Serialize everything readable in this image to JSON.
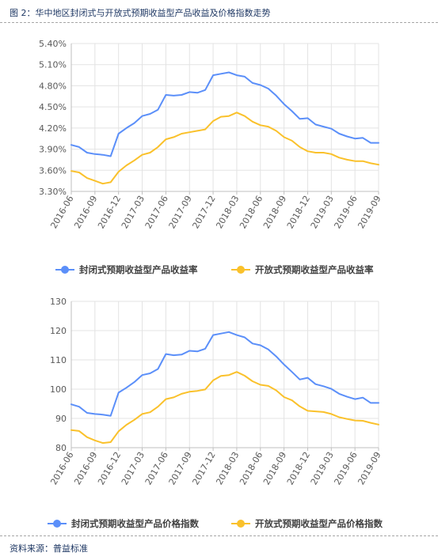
{
  "figure_title": "图 2：华中地区封闭式与开放式预期收益型产品收益及价格指数走势",
  "source": "资料来源：普益标准",
  "colors": {
    "series_a": "#5b8ff9",
    "series_b": "#fac12b"
  },
  "chart_data": [
    {
      "type": "line",
      "x": [
        "2016-06",
        "2016-07",
        "2016-08",
        "2016-09",
        "2016-10",
        "2016-11",
        "2016-12",
        "2017-01",
        "2017-02",
        "2017-03",
        "2017-04",
        "2017-05",
        "2017-06",
        "2017-07",
        "2017-08",
        "2017-09",
        "2017-10",
        "2017-11",
        "2017-12",
        "2018-01",
        "2018-02",
        "2018-03",
        "2018-04",
        "2018-05",
        "2018-06",
        "2018-07",
        "2018-08",
        "2018-09",
        "2018-10",
        "2018-11",
        "2018-12",
        "2019-01",
        "2019-02",
        "2019-03",
        "2019-04",
        "2019-05",
        "2019-06",
        "2019-07",
        "2019-08",
        "2019-09"
      ],
      "x_tick_labels": [
        "2016-06",
        "2016-09",
        "2016-12",
        "2017-03",
        "2017-06",
        "2017-09",
        "2017-12",
        "2018-03",
        "2018-06",
        "2018-09",
        "2018-12",
        "2019-03",
        "2019-06",
        "2019-09"
      ],
      "y_tick_labels": [
        "3.30%",
        "3.60%",
        "3.90%",
        "4.20%",
        "4.50%",
        "4.80%",
        "5.10%",
        "5.40%"
      ],
      "ylim": [
        3.3,
        5.4
      ],
      "ystep": 0.3,
      "grid": true,
      "legend": "bottom",
      "series": [
        {
          "name": "封闭式预期收益型产品收益率",
          "values": [
            3.96,
            3.93,
            3.85,
            3.83,
            3.82,
            3.8,
            4.12,
            4.2,
            4.27,
            4.37,
            4.4,
            4.46,
            4.67,
            4.66,
            4.67,
            4.71,
            4.7,
            4.74,
            4.95,
            4.97,
            4.99,
            4.95,
            4.93,
            4.84,
            4.81,
            4.76,
            4.66,
            4.54,
            4.44,
            4.33,
            4.34,
            4.25,
            4.22,
            4.19,
            4.12,
            4.08,
            4.05,
            4.06,
            3.99,
            3.99
          ]
        },
        {
          "name": "开放式预期收益型产品收益率",
          "values": [
            3.59,
            3.57,
            3.49,
            3.45,
            3.41,
            3.43,
            3.58,
            3.67,
            3.74,
            3.82,
            3.85,
            3.93,
            4.04,
            4.07,
            4.12,
            4.14,
            4.16,
            4.18,
            4.3,
            4.36,
            4.37,
            4.42,
            4.37,
            4.29,
            4.24,
            4.22,
            4.16,
            4.07,
            4.02,
            3.93,
            3.87,
            3.85,
            3.85,
            3.83,
            3.78,
            3.75,
            3.73,
            3.73,
            3.7,
            3.68
          ]
        }
      ]
    },
    {
      "type": "line",
      "x": [
        "2016-06",
        "2016-07",
        "2016-08",
        "2016-09",
        "2016-10",
        "2016-11",
        "2016-12",
        "2017-01",
        "2017-02",
        "2017-03",
        "2017-04",
        "2017-05",
        "2017-06",
        "2017-07",
        "2017-08",
        "2017-09",
        "2017-10",
        "2017-11",
        "2017-12",
        "2018-01",
        "2018-02",
        "2018-03",
        "2018-04",
        "2018-05",
        "2018-06",
        "2018-07",
        "2018-08",
        "2018-09",
        "2018-10",
        "2018-11",
        "2018-12",
        "2019-01",
        "2019-02",
        "2019-03",
        "2019-04",
        "2019-05",
        "2019-06",
        "2019-07",
        "2019-08",
        "2019-09"
      ],
      "x_tick_labels": [
        "2016-06",
        "2016-09",
        "2016-12",
        "2017-03",
        "2017-06",
        "2017-09",
        "2017-12",
        "2018-03",
        "2018-06",
        "2018-09",
        "2018-12",
        "2019-03",
        "2019-06",
        "2019-09"
      ],
      "y_tick_labels": [
        "80",
        "90",
        "100",
        "110",
        "120",
        "130"
      ],
      "ylim": [
        80,
        130
      ],
      "ystep": 10,
      "grid": true,
      "legend": "bottom",
      "series": [
        {
          "name": "封闭式预期收益型产品价格指数",
          "values": [
            94.8,
            94,
            91.9,
            91.5,
            91.3,
            90.9,
            98.8,
            100.5,
            102.4,
            104.8,
            105.4,
            106.9,
            112,
            111.6,
            111.8,
            113.1,
            112.9,
            113.8,
            118.5,
            119,
            119.5,
            118.5,
            117.7,
            115.6,
            115,
            113.6,
            111.2,
            108.4,
            105.9,
            103.3,
            103.9,
            101.7,
            101,
            100.1,
            98.4,
            97.4,
            96.6,
            97.1,
            95.3,
            95.3
          ]
        },
        {
          "name": "开放式预期收益型产品价格指数",
          "values": [
            86,
            85.7,
            83.6,
            82.5,
            81.6,
            81.9,
            85.6,
            87.8,
            89.5,
            91.5,
            92.1,
            94,
            96.6,
            97.2,
            98.4,
            99.1,
            99.4,
            99.9,
            103,
            104.5,
            104.8,
            105.9,
            104.6,
            102.7,
            101.5,
            101.1,
            99.6,
            97.3,
            96.2,
            94.1,
            92.6,
            92.4,
            92.2,
            91.5,
            90.4,
            89.8,
            89.3,
            89.2,
            88.5,
            87.9
          ]
        }
      ]
    }
  ]
}
